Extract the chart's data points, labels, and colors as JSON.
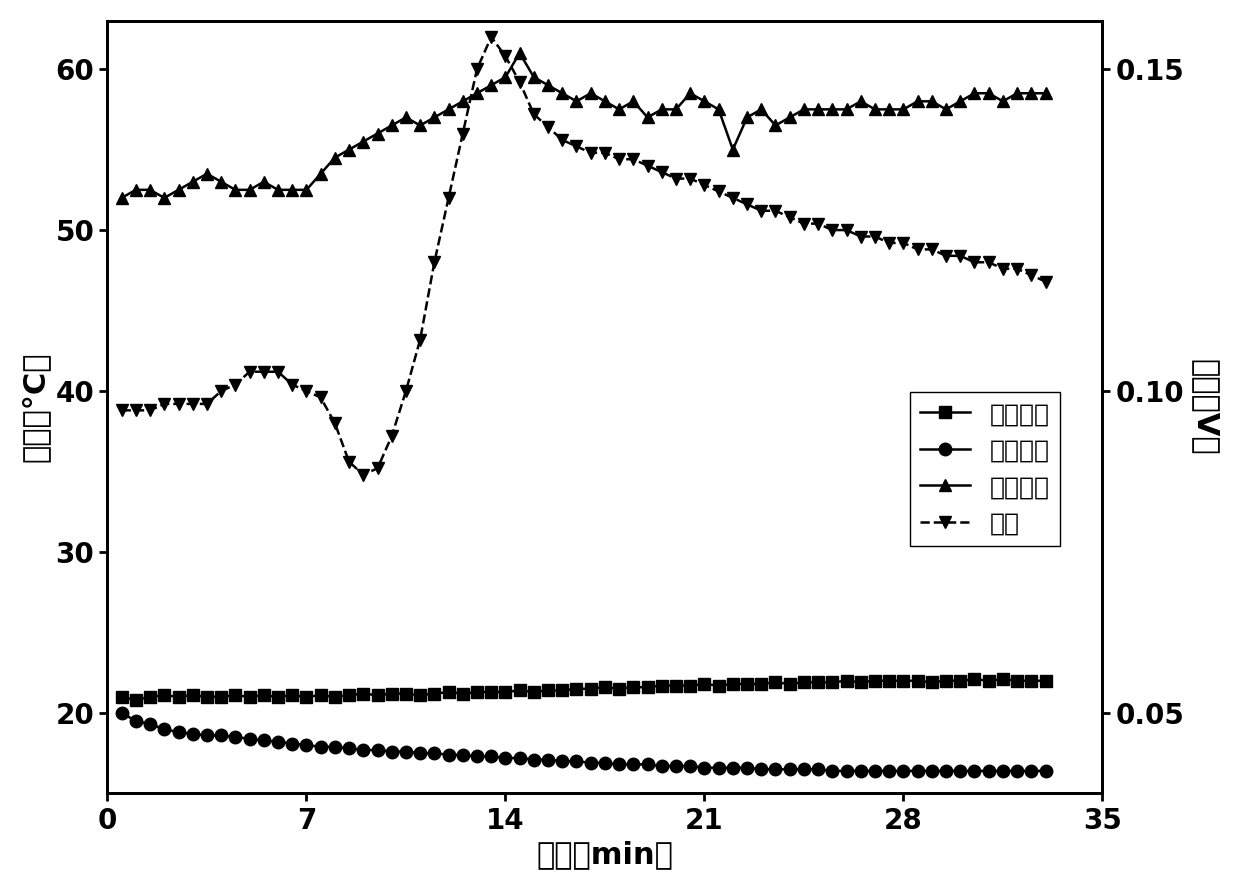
{
  "title": "",
  "xlabel": "时间（min）",
  "ylabel_left": "温度（°C）",
  "ylabel_right": "电压（V）",
  "xlim": [
    0,
    35
  ],
  "ylim_left": [
    15,
    63
  ],
  "ylim_right": [
    0.0375,
    0.1575
  ],
  "xticks": [
    0,
    7,
    14,
    21,
    28,
    35
  ],
  "yticks_left": [
    20,
    30,
    40,
    50,
    60
  ],
  "yticks_right": [
    0.05,
    0.1,
    0.15
  ],
  "legend_labels": [
    "环境温度",
    "冷端温度",
    "热端温度",
    "电压"
  ],
  "background_color": "#ffffff",
  "ambient_temp_x": [
    0.5,
    1.0,
    1.5,
    2.0,
    2.5,
    3.0,
    3.5,
    4.0,
    4.5,
    5.0,
    5.5,
    6.0,
    6.5,
    7.0,
    7.5,
    8.0,
    8.5,
    9.0,
    9.5,
    10.0,
    10.5,
    11.0,
    11.5,
    12.0,
    12.5,
    13.0,
    13.5,
    14.0,
    14.5,
    15.0,
    15.5,
    16.0,
    16.5,
    17.0,
    17.5,
    18.0,
    18.5,
    19.0,
    19.5,
    20.0,
    20.5,
    21.0,
    21.5,
    22.0,
    22.5,
    23.0,
    23.5,
    24.0,
    24.5,
    25.0,
    25.5,
    26.0,
    26.5,
    27.0,
    27.5,
    28.0,
    28.5,
    29.0,
    29.5,
    30.0,
    30.5,
    31.0,
    31.5,
    32.0,
    32.5,
    33.0
  ],
  "ambient_temp_y": [
    21.0,
    20.8,
    21.0,
    21.1,
    21.0,
    21.1,
    21.0,
    21.0,
    21.1,
    21.0,
    21.1,
    21.0,
    21.1,
    21.0,
    21.1,
    21.0,
    21.1,
    21.2,
    21.1,
    21.2,
    21.2,
    21.1,
    21.2,
    21.3,
    21.2,
    21.3,
    21.3,
    21.3,
    21.4,
    21.3,
    21.4,
    21.4,
    21.5,
    21.5,
    21.6,
    21.5,
    21.6,
    21.6,
    21.7,
    21.7,
    21.7,
    21.8,
    21.7,
    21.8,
    21.8,
    21.8,
    21.9,
    21.8,
    21.9,
    21.9,
    21.9,
    22.0,
    21.9,
    22.0,
    22.0,
    22.0,
    22.0,
    21.9,
    22.0,
    22.0,
    22.1,
    22.0,
    22.1,
    22.0,
    22.0,
    22.0
  ],
  "cold_temp_x": [
    0.5,
    1.0,
    1.5,
    2.0,
    2.5,
    3.0,
    3.5,
    4.0,
    4.5,
    5.0,
    5.5,
    6.0,
    6.5,
    7.0,
    7.5,
    8.0,
    8.5,
    9.0,
    9.5,
    10.0,
    10.5,
    11.0,
    11.5,
    12.0,
    12.5,
    13.0,
    13.5,
    14.0,
    14.5,
    15.0,
    15.5,
    16.0,
    16.5,
    17.0,
    17.5,
    18.0,
    18.5,
    19.0,
    19.5,
    20.0,
    20.5,
    21.0,
    21.5,
    22.0,
    22.5,
    23.0,
    23.5,
    24.0,
    24.5,
    25.0,
    25.5,
    26.0,
    26.5,
    27.0,
    27.5,
    28.0,
    28.5,
    29.0,
    29.5,
    30.0,
    30.5,
    31.0,
    31.5,
    32.0,
    32.5,
    33.0
  ],
  "cold_temp_y": [
    20.0,
    19.5,
    19.3,
    19.0,
    18.8,
    18.7,
    18.6,
    18.6,
    18.5,
    18.4,
    18.3,
    18.2,
    18.1,
    18.0,
    17.9,
    17.9,
    17.8,
    17.7,
    17.7,
    17.6,
    17.6,
    17.5,
    17.5,
    17.4,
    17.4,
    17.3,
    17.3,
    17.2,
    17.2,
    17.1,
    17.1,
    17.0,
    17.0,
    16.9,
    16.9,
    16.8,
    16.8,
    16.8,
    16.7,
    16.7,
    16.7,
    16.6,
    16.6,
    16.6,
    16.6,
    16.5,
    16.5,
    16.5,
    16.5,
    16.5,
    16.4,
    16.4,
    16.4,
    16.4,
    16.4,
    16.4,
    16.4,
    16.4,
    16.4,
    16.4,
    16.4,
    16.4,
    16.4,
    16.4,
    16.4,
    16.4
  ],
  "hot_temp_x": [
    0.5,
    1.0,
    1.5,
    2.0,
    2.5,
    3.0,
    3.5,
    4.0,
    4.5,
    5.0,
    5.5,
    6.0,
    6.5,
    7.0,
    7.5,
    8.0,
    8.5,
    9.0,
    9.5,
    10.0,
    10.5,
    11.0,
    11.5,
    12.0,
    12.5,
    13.0,
    13.5,
    14.0,
    14.5,
    15.0,
    15.5,
    16.0,
    16.5,
    17.0,
    17.5,
    18.0,
    18.5,
    19.0,
    19.5,
    20.0,
    20.5,
    21.0,
    21.5,
    22.0,
    22.5,
    23.0,
    23.5,
    24.0,
    24.5,
    25.0,
    25.5,
    26.0,
    26.5,
    27.0,
    27.5,
    28.0,
    28.5,
    29.0,
    29.5,
    30.0,
    30.5,
    31.0,
    31.5,
    32.0,
    32.5,
    33.0
  ],
  "hot_temp_y": [
    52.0,
    52.5,
    52.5,
    52.0,
    52.5,
    53.0,
    53.5,
    53.0,
    52.5,
    52.5,
    53.0,
    52.5,
    52.5,
    52.5,
    53.5,
    54.5,
    55.0,
    55.5,
    56.0,
    56.5,
    57.0,
    56.5,
    57.0,
    57.5,
    58.0,
    58.5,
    59.0,
    59.5,
    61.0,
    59.5,
    59.0,
    58.5,
    58.0,
    58.5,
    58.0,
    57.5,
    58.0,
    57.0,
    57.5,
    57.5,
    58.5,
    58.0,
    57.5,
    55.0,
    57.0,
    57.5,
    56.5,
    57.0,
    57.5,
    57.5,
    57.5,
    57.5,
    58.0,
    57.5,
    57.5,
    57.5,
    58.0,
    58.0,
    57.5,
    58.0,
    58.5,
    58.5,
    58.0,
    58.5,
    58.5,
    58.5
  ],
  "voltage_x": [
    0.5,
    1.0,
    1.5,
    2.0,
    2.5,
    3.0,
    3.5,
    4.0,
    4.5,
    5.0,
    5.5,
    6.0,
    6.5,
    7.0,
    7.5,
    8.0,
    8.5,
    9.0,
    9.5,
    10.0,
    10.5,
    11.0,
    11.5,
    12.0,
    12.5,
    13.0,
    13.5,
    14.0,
    14.5,
    15.0,
    15.5,
    16.0,
    16.5,
    17.0,
    17.5,
    18.0,
    18.5,
    19.0,
    19.5,
    20.0,
    20.5,
    21.0,
    21.5,
    22.0,
    22.5,
    23.0,
    23.5,
    24.0,
    24.5,
    25.0,
    25.5,
    26.0,
    26.5,
    27.0,
    27.5,
    28.0,
    28.5,
    29.0,
    29.5,
    30.0,
    30.5,
    31.0,
    31.5,
    32.0,
    32.5,
    33.0
  ],
  "voltage_y": [
    0.097,
    0.097,
    0.097,
    0.098,
    0.098,
    0.098,
    0.098,
    0.1,
    0.101,
    0.103,
    0.103,
    0.103,
    0.101,
    0.1,
    0.099,
    0.095,
    0.089,
    0.087,
    0.088,
    0.093,
    0.1,
    0.108,
    0.12,
    0.13,
    0.14,
    0.15,
    0.155,
    0.152,
    0.148,
    0.143,
    0.141,
    0.139,
    0.138,
    0.137,
    0.137,
    0.136,
    0.136,
    0.135,
    0.134,
    0.133,
    0.133,
    0.132,
    0.131,
    0.13,
    0.129,
    0.128,
    0.128,
    0.127,
    0.126,
    0.126,
    0.125,
    0.125,
    0.124,
    0.124,
    0.123,
    0.123,
    0.122,
    0.122,
    0.121,
    0.121,
    0.12,
    0.12,
    0.119,
    0.119,
    0.118,
    0.117
  ],
  "font_size_axis_label": 22,
  "font_size_tick_label": 20,
  "font_size_legend": 18,
  "line_width": 1.8,
  "marker_size": 9,
  "color": "#000000"
}
